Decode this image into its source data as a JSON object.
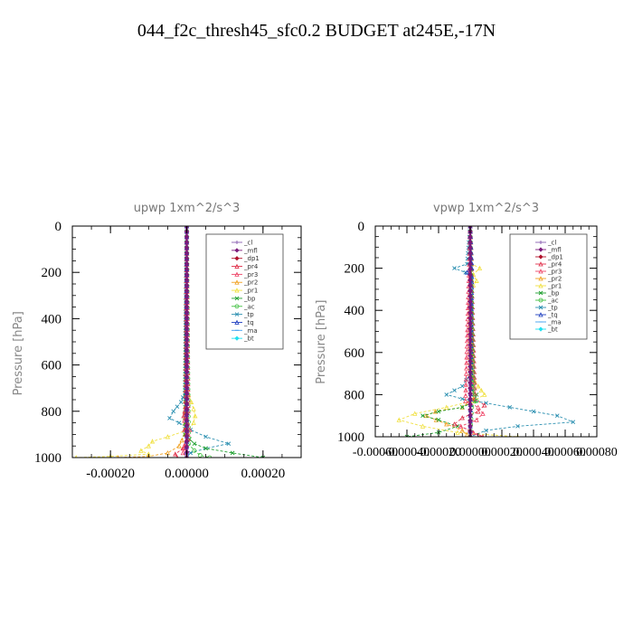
{
  "figure_title": "044_f2c_thresh45_sfc0.2  BUDGET at245E,-17N",
  "colors": {
    "_cl": "#8a5fb0",
    "_mfl": "#7b1a7b",
    "_dp1": "#b0102a",
    "_pr4": "#e0304a",
    "_pr3": "#ee4466",
    "_pr2": "#f0a020",
    "_pr1": "#f0e040",
    "_bp": "#20a030",
    "_ac": "#40c040",
    "_tp": "#2a8fb0",
    "_tq": "#2040c0",
    "_ma": "#40a0f0",
    "_bt": "#20e0f0"
  },
  "chart_data": [
    {
      "type": "line",
      "title": "upwp   1xm^2/s^3",
      "ylabel": "Pressure [hPa]",
      "xlim": [
        -0.0003,
        0.0003
      ],
      "ylim": [
        1000,
        0
      ],
      "x_ticks": [
        -0.0002,
        0.0,
        0.0002
      ],
      "x_tick_labels": [
        "-0.00020",
        "0.00000",
        "0.00020"
      ],
      "y_ticks": [
        0,
        200,
        400,
        600,
        800,
        1000
      ],
      "y_tick_labels": [
        "0",
        "200",
        "400",
        "600",
        "800",
        "1000"
      ],
      "legend": [
        "_cl",
        "_mfl",
        "_dp1",
        "_pr4",
        "_pr3",
        "_pr2",
        "_pr1",
        "_bp",
        "_ac",
        "_tp",
        "_tq",
        "_ma",
        "_bt"
      ],
      "legend_position": "top-right",
      "series": [
        {
          "name": "_pr1",
          "p": [
            0,
            700,
            730,
            760,
            790,
            820,
            850,
            880,
            910,
            930,
            950,
            970,
            985,
            995,
            1000
          ],
          "v": [
            0,
            0,
            5e-06,
            1.2e-05,
            1.8e-05,
            2.2e-05,
            1.8e-05,
            5e-06,
            -5e-05,
            -9e-05,
            -0.0001,
            -0.00012,
            -0.0001,
            -0.0002,
            -0.00029
          ]
        },
        {
          "name": "_pr2",
          "p": [
            0,
            900,
            950,
            980,
            995,
            1000
          ],
          "v": [
            0,
            -5e-06,
            -2e-05,
            -5e-05,
            -0.0001,
            -0.00018
          ]
        },
        {
          "name": "_tp",
          "p": [
            0,
            720,
            760,
            800,
            830,
            850,
            880,
            910,
            940,
            960,
            980,
            1000
          ],
          "v": [
            0,
            -5e-06,
            -1.5e-05,
            -3.5e-05,
            -4.5e-05,
            -2e-05,
            1e-05,
            5e-05,
            0.00011,
            5e-05,
            1e-05,
            0
          ]
        },
        {
          "name": "_bp",
          "p": [
            0,
            900,
            940,
            960,
            980,
            1000
          ],
          "v": [
            0,
            -5e-06,
            2e-05,
            5e-05,
            0.00012,
            0.0002
          ]
        },
        {
          "name": "_ac",
          "p": [
            0,
            940,
            970,
            990,
            1000
          ],
          "v": [
            0,
            5e-06,
            2e-05,
            3.5e-05,
            6e-05
          ]
        },
        {
          "name": "_pr4",
          "p": [
            0,
            780,
            820,
            850,
            880,
            920,
            960,
            985,
            1000
          ],
          "v": [
            0,
            -3e-06,
            -8e-06,
            2e-06,
            -6e-06,
            4e-06,
            -1e-05,
            -3e-05,
            -2.5e-05
          ]
        },
        {
          "name": "_pr3",
          "p": [
            0,
            800,
            840,
            880,
            940,
            980,
            1000
          ],
          "v": [
            0,
            4e-06,
            -6e-06,
            8e-06,
            -4e-06,
            -1e-05,
            0
          ]
        },
        {
          "name": "_dp1",
          "p": [
            0,
            1000
          ],
          "v": [
            0,
            0
          ]
        },
        {
          "name": "_tq",
          "p": [
            0,
            1000
          ],
          "v": [
            0,
            0
          ]
        },
        {
          "name": "_mfl",
          "p": [
            0,
            1000
          ],
          "v": [
            0,
            0
          ]
        }
      ]
    },
    {
      "type": "line",
      "title": "vpwp   1xm^2/s^3",
      "ylabel": "Pressure [hPa]",
      "xlim": [
        -0.0006,
        0.0008
      ],
      "ylim": [
        1000,
        0
      ],
      "x_ticks": [
        -0.0006,
        -0.0004,
        -0.0002,
        0.0,
        0.0002,
        0.0004,
        0.0006,
        0.0008
      ],
      "x_tick_labels": [
        "-0.00060",
        "-0.00040",
        "-0.00020",
        "0.00000",
        "0.00020",
        "0.00040",
        "0.00060",
        "0.00080"
      ],
      "y_ticks": [
        0,
        200,
        400,
        600,
        800,
        1000
      ],
      "y_tick_labels": [
        "0",
        "200",
        "400",
        "600",
        "800",
        "1000"
      ],
      "legend": [
        "_cl",
        "_mfl",
        "_dp1",
        "_pr4",
        "_pr3",
        "_pr2",
        "_pr1",
        "_bp",
        "_ac",
        "_tp",
        "_tq",
        "_ma",
        "_bt"
      ],
      "legend_position": "top-right",
      "series": [
        {
          "name": "_tp",
          "p": [
            0,
            180,
            200,
            220,
            240,
            280,
            700,
            760,
            800,
            820,
            840,
            880,
            900,
            930,
            950,
            970,
            1000
          ],
          "v": [
            0,
            -2e-05,
            -0.0001,
            -3e-05,
            1e-05,
            0,
            0,
            -5e-05,
            -0.00015,
            -5e-05,
            0.0001,
            0.0004,
            0.00055,
            0.00065,
            0.0003,
            0.0001,
            0
          ]
        },
        {
          "name": "_pr1",
          "p": [
            0,
            180,
            200,
            230,
            260,
            300,
            700,
            760,
            800,
            830,
            860,
            890,
            920,
            950,
            980,
            1000
          ],
          "v": [
            0,
            1e-05,
            6e-05,
            2e-05,
            4e-05,
            0,
            0,
            5e-05,
            9e-05,
            2e-05,
            -0.00015,
            -0.00035,
            -0.00045,
            -0.0003,
            -8e-05,
            0.0003
          ]
        },
        {
          "name": "_pr2",
          "p": [
            0,
            820,
            860,
            880,
            900,
            940,
            970,
            990,
            1000
          ],
          "v": [
            0,
            2e-05,
            -5e-05,
            -0.00022,
            -0.00028,
            -0.00015,
            -5e-05,
            -2e-05,
            0
          ]
        },
        {
          "name": "_bp",
          "p": [
            0,
            780,
            800,
            830,
            860,
            880,
            900,
            920,
            950,
            980,
            1000
          ],
          "v": [
            0,
            1e-05,
            4e-05,
            3e-05,
            -5e-05,
            -0.0002,
            -0.0003,
            -0.0002,
            -8e-05,
            -0.0002,
            -0.0004
          ]
        },
        {
          "name": "_pr4",
          "p": [
            0,
            820,
            850,
            880,
            910,
            940,
            970,
            1000
          ],
          "v": [
            0,
            3e-05,
            9e-05,
            5e-05,
            -5e-05,
            -0.0001,
            0,
            8e-05
          ]
        },
        {
          "name": "_pr3",
          "p": [
            0,
            830,
            860,
            890,
            920,
            950,
            980,
            1000
          ],
          "v": [
            0,
            -3e-05,
            5e-05,
            8e-05,
            4e-05,
            -6e-05,
            2e-05,
            6e-05
          ]
        },
        {
          "name": "_ac",
          "p": [
            0,
            800,
            830,
            860,
            1000
          ],
          "v": [
            0,
            2e-05,
            4e-05,
            1e-05,
            0
          ]
        },
        {
          "name": "_tq",
          "p": [
            0,
            200,
            220,
            240,
            1000
          ],
          "v": [
            0,
            1e-05,
            -2e-05,
            1e-05,
            0
          ]
        },
        {
          "name": "_dp1",
          "p": [
            0,
            1000
          ],
          "v": [
            0,
            0
          ]
        },
        {
          "name": "_mfl",
          "p": [
            0,
            1000
          ],
          "v": [
            0,
            0
          ]
        }
      ]
    }
  ]
}
